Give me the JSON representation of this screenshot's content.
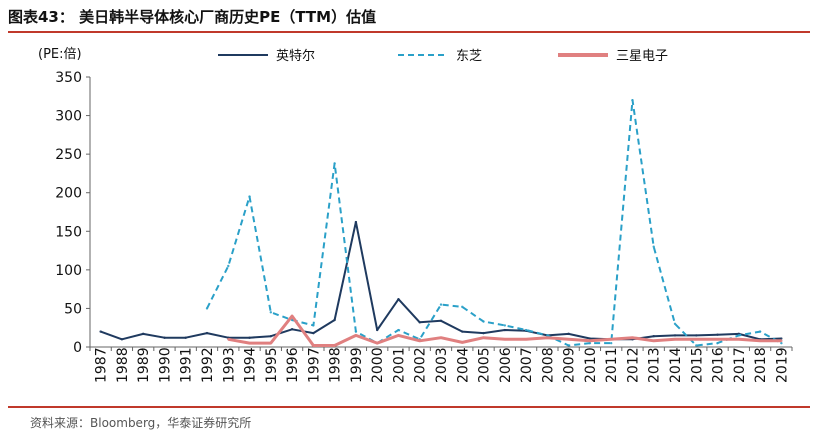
{
  "header": {
    "title": "图表43：  美日韩半导体核心厂商历史PE（TTM）估值"
  },
  "footer": {
    "source": "资料来源：Bloomberg，华泰证券研究所"
  },
  "chart_data": {
    "type": "line",
    "title": "",
    "ylabel": "(PE:倍)",
    "xlabel": "",
    "ylim": [
      0,
      350
    ],
    "yticks": [
      0,
      50,
      100,
      150,
      200,
      250,
      300,
      350
    ],
    "grid": false,
    "legend_position": "top",
    "categories": [
      "1987",
      "1988",
      "1989",
      "1990",
      "1991",
      "1992",
      "1993",
      "1994",
      "1995",
      "1996",
      "1997",
      "1998",
      "1999",
      "2000",
      "2001",
      "2002",
      "2003",
      "2004",
      "2005",
      "2006",
      "2007",
      "2008",
      "2009",
      "2010",
      "2011",
      "2012",
      "2013",
      "2014",
      "2015",
      "2016",
      "2017",
      "2018",
      "2019"
    ],
    "series": [
      {
        "name": "英特尔",
        "color": "#1f3a5f",
        "style": "solid",
        "values": [
          20,
          10,
          17,
          12,
          12,
          18,
          12,
          12,
          14,
          23,
          18,
          35,
          162,
          22,
          62,
          32,
          34,
          20,
          18,
          22,
          21,
          15,
          17,
          11,
          10,
          10,
          14,
          15,
          15,
          16,
          17,
          10,
          11
        ]
      },
      {
        "name": "东芝",
        "color": "#2aa0c8",
        "style": "dashed",
        "values": [
          null,
          null,
          null,
          null,
          null,
          50,
          105,
          195,
          45,
          35,
          28,
          238,
          20,
          5,
          22,
          10,
          55,
          52,
          33,
          28,
          22,
          15,
          2,
          5,
          5,
          320,
          130,
          30,
          2,
          5,
          15,
          20,
          5
        ]
      },
      {
        "name": "三星电子",
        "color": "#e08080",
        "style": "solid",
        "values": [
          null,
          null,
          null,
          null,
          null,
          null,
          10,
          5,
          5,
          40,
          2,
          2,
          15,
          5,
          15,
          8,
          12,
          6,
          12,
          10,
          10,
          12,
          10,
          8,
          10,
          12,
          8,
          10,
          10,
          10,
          10,
          8,
          8
        ]
      }
    ]
  }
}
